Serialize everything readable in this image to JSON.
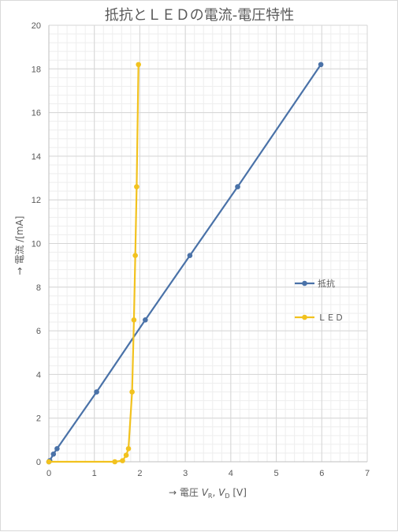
{
  "chart_data": {
    "type": "scatter",
    "title": "抵抗とＬＥＤの電流-電圧特性",
    "xlabel": {
      "prefix": "→ 電圧 ",
      "v1": "V",
      "s1": "R",
      "sep": ", ",
      "v2": "V",
      "s2": "D",
      "suffix": " [V]"
    },
    "ylabel": "→ 電流 /[mA]",
    "xlim": [
      0,
      7
    ],
    "ylim": [
      0,
      20
    ],
    "x_ticks": [
      0,
      1,
      2,
      3,
      4,
      5,
      6,
      7
    ],
    "y_ticks": [
      0,
      2,
      4,
      6,
      8,
      10,
      12,
      14,
      16,
      18,
      20
    ],
    "grid": "major and minor",
    "legend_position": "right",
    "series": [
      {
        "name": "抵抗",
        "color": "#4a72a8",
        "x": [
          0,
          0.02,
          0.1,
          0.18,
          1.05,
          2.12,
          3.1,
          4.15,
          5.98
        ],
        "y": [
          0,
          0.05,
          0.35,
          0.6,
          3.2,
          6.5,
          9.45,
          12.6,
          18.2
        ]
      },
      {
        "name": "ＬＥＤ",
        "color": "#f2c21e",
        "x": [
          0,
          1.45,
          1.62,
          1.7,
          1.75,
          1.83,
          1.87,
          1.9,
          1.93,
          1.97
        ],
        "y": [
          0,
          0,
          0.05,
          0.3,
          0.6,
          3.2,
          6.5,
          9.45,
          12.6,
          18.2
        ]
      }
    ]
  }
}
